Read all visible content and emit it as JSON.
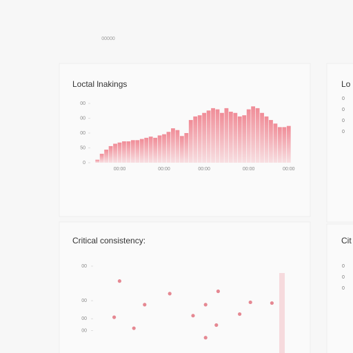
{
  "header": {
    "label": "00000"
  },
  "chart_data": [
    {
      "type": "bar",
      "title": "Loctal lnakings",
      "color": "#f08c97",
      "categories": [
        null,
        null,
        null,
        null,
        null,
        "00:00",
        null,
        null,
        null,
        null,
        null,
        null,
        null,
        null,
        null,
        "00:00",
        null,
        null,
        null,
        null,
        null,
        null,
        null,
        null,
        "00:00",
        null,
        null,
        null,
        null,
        null,
        null,
        null,
        null,
        null,
        "00:00",
        null,
        null,
        null,
        null,
        null,
        null,
        null,
        null,
        "00:00"
      ],
      "values": [
        5,
        15,
        22,
        28,
        32,
        34,
        36,
        36,
        38,
        38,
        40,
        42,
        44,
        42,
        46,
        48,
        52,
        58,
        55,
        45,
        50,
        72,
        78,
        80,
        84,
        88,
        92,
        90,
        84,
        92,
        86,
        84,
        78,
        80,
        90,
        95,
        92,
        84,
        78,
        72,
        66,
        60,
        60,
        62
      ],
      "ylim": [
        0,
        100
      ],
      "yticks": [
        0,
        {
          "value": 25,
          "label": "50"
        },
        {
          "value": 50,
          "label": "00"
        },
        {
          "value": 75,
          "label": "00"
        },
        {
          "value": 100,
          "label": "00"
        }
      ]
    },
    {
      "type": "scatter",
      "title": "Critical consistency:",
      "color": "#e06c78",
      "x": [
        9,
        23,
        37,
        6,
        57,
        64,
        82,
        50,
        63,
        76,
        57,
        94,
        17
      ],
      "values": [
        81,
        51,
        65,
        35,
        51,
        68,
        54,
        37,
        25,
        39,
        9,
        53,
        21
      ],
      "xlim": [
        0,
        100
      ],
      "ylim": [
        0,
        100
      ],
      "yticks": [
        {
          "value": 18,
          "label": "00"
        },
        {
          "value": 33,
          "label": "00"
        },
        {
          "value": 56,
          "label": "00"
        },
        {
          "value": 100,
          "label": "00"
        }
      ]
    }
  ],
  "side_panels": [
    {
      "title": "Lo",
      "items": [
        "0",
        "0",
        "0",
        "0"
      ]
    },
    {
      "title": "Cit",
      "items": [
        "0",
        "0",
        "0"
      ]
    }
  ]
}
